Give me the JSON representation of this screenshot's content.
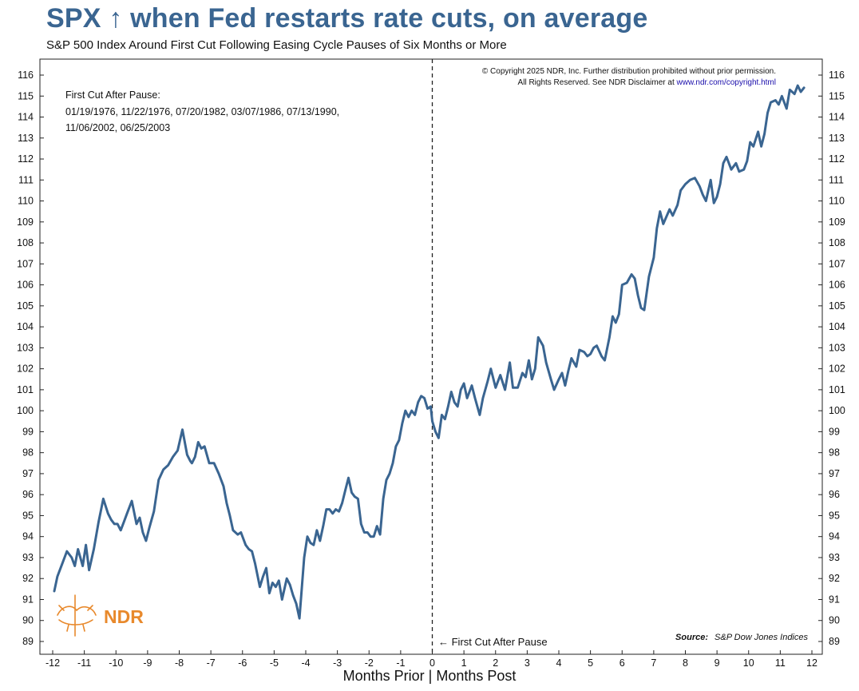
{
  "title": "SPX ↑ when Fed restarts rate cuts, on average",
  "subtitle": "S&P 500 Index Around First Cut Following Easing Cycle Pauses of Six Months or More",
  "copyright_line1": "© Copyright 2025 NDR, Inc. Further distribution prohibited without prior permission.",
  "copyright_line2_prefix": "All Rights Reserved. See NDR Disclaimer at ",
  "copyright_link": "www.ndr.com/copyright.html",
  "dates_heading": "First Cut After Pause:",
  "dates_line1": "01/19/1976, 11/22/1976, 07/20/1982, 03/07/1986, 07/13/1990,",
  "dates_line2": "11/06/2002, 06/25/2003",
  "marker_label": "←  First Cut After Pause",
  "source_label": "Source:",
  "source_value": "S&P Dow Jones Indices",
  "logo_text": "NDR",
  "colors": {
    "line": "#3a6591",
    "title": "#3a6591",
    "logo": "#e8892c",
    "link": "#1a0dab"
  },
  "chart_data": {
    "type": "line",
    "title": "SPX ↑ when Fed restarts rate cuts, on average",
    "subtitle": "S&P 500 Index Around First Cut Following Easing Cycle Pauses of Six Months or More",
    "xlabel": "Months Prior | Months Post",
    "ylabel": "",
    "xlim": [
      -12,
      12
    ],
    "ylim": [
      89,
      116
    ],
    "x_ticks": [
      -12,
      -11,
      -10,
      -9,
      -8,
      -7,
      -6,
      -5,
      -4,
      -3,
      -2,
      -1,
      0,
      1,
      2,
      3,
      4,
      5,
      6,
      7,
      8,
      9,
      10,
      11,
      12
    ],
    "y_ticks": [
      89,
      90,
      91,
      92,
      93,
      94,
      95,
      96,
      97,
      98,
      99,
      100,
      101,
      102,
      103,
      104,
      105,
      106,
      107,
      108,
      109,
      110,
      111,
      112,
      113,
      114,
      115,
      116
    ],
    "grid": false,
    "vertical_marker_x": 0,
    "series": [
      {
        "x": [
          -11.95,
          -11.85,
          -11.7,
          -11.55,
          -11.4,
          -11.3,
          -11.2,
          -11.05,
          -10.95,
          -10.85,
          -10.7,
          -10.55,
          -10.4,
          -10.25,
          -10.15,
          -10.05,
          -9.95,
          -9.85,
          -9.75,
          -9.65,
          -9.5,
          -9.35,
          -9.25,
          -9.15,
          -9.05,
          -8.95,
          -8.8,
          -8.65,
          -8.5,
          -8.35,
          -8.2,
          -8.05,
          -7.9,
          -7.75,
          -7.65,
          -7.6,
          -7.5,
          -7.4,
          -7.3,
          -7.2,
          -7.05,
          -6.9,
          -6.75,
          -6.6,
          -6.5,
          -6.4,
          -6.3,
          -6.15,
          -6.05,
          -5.9,
          -5.8,
          -5.7,
          -5.6,
          -5.45,
          -5.35,
          -5.25,
          -5.15,
          -5.05,
          -4.95,
          -4.85,
          -4.75,
          -4.6,
          -4.5,
          -4.4,
          -4.3,
          -4.2,
          -4.05,
          -3.95,
          -3.85,
          -3.75,
          -3.65,
          -3.55,
          -3.45,
          -3.35,
          -3.25,
          -3.15,
          -3.05,
          -2.95,
          -2.85,
          -2.75,
          -2.65,
          -2.55,
          -2.45,
          -2.35,
          -2.25,
          -2.15,
          -2.05,
          -1.95,
          -1.85,
          -1.75,
          -1.65,
          -1.55,
          -1.45,
          -1.35,
          -1.25,
          -1.15,
          -1.05,
          -0.95,
          -0.85,
          -0.75,
          -0.65,
          -0.55,
          -0.45,
          -0.35,
          -0.25,
          -0.15,
          -0.05,
          0.0,
          0.1,
          0.2,
          0.3,
          0.4,
          0.5,
          0.6,
          0.7,
          0.8,
          0.9,
          1.0,
          1.1,
          1.25,
          1.35,
          1.5,
          1.6,
          1.75,
          1.85,
          2.0,
          2.15,
          2.3,
          2.45,
          2.55,
          2.7,
          2.85,
          2.95,
          3.05,
          3.15,
          3.25,
          3.35,
          3.5,
          3.6,
          3.75,
          3.85,
          4.0,
          4.1,
          4.2,
          4.3,
          4.4,
          4.55,
          4.65,
          4.8,
          4.9,
          5.0,
          5.1,
          5.2,
          5.35,
          5.45,
          5.6,
          5.7,
          5.8,
          5.9,
          6.0,
          6.15,
          6.3,
          6.4,
          6.5,
          6.6,
          6.7,
          6.85,
          7.0,
          7.1,
          7.2,
          7.3,
          7.5,
          7.6,
          7.75,
          7.85,
          8.0,
          8.15,
          8.3,
          8.45,
          8.55,
          8.65,
          8.8,
          8.9,
          9.0,
          9.1,
          9.2,
          9.3,
          9.45,
          9.6,
          9.7,
          9.85,
          9.95,
          10.05,
          10.15,
          10.3,
          10.4,
          10.5,
          10.6,
          10.7,
          10.85,
          10.95,
          11.05,
          11.2,
          11.3,
          11.45,
          11.55,
          11.65,
          11.75
        ],
        "values": [
          91.4,
          92.1,
          92.7,
          93.3,
          93.0,
          92.6,
          93.4,
          92.6,
          93.6,
          92.4,
          93.4,
          94.7,
          95.8,
          95.1,
          94.8,
          94.6,
          94.6,
          94.3,
          94.7,
          95.1,
          95.7,
          94.6,
          94.9,
          94.2,
          93.8,
          94.4,
          95.2,
          96.7,
          97.2,
          97.4,
          97.8,
          98.1,
          99.1,
          97.9,
          97.6,
          97.5,
          97.8,
          98.5,
          98.2,
          98.3,
          97.5,
          97.5,
          97.0,
          96.4,
          95.6,
          95.0,
          94.3,
          94.1,
          94.2,
          93.6,
          93.4,
          93.3,
          92.7,
          91.6,
          92.1,
          92.5,
          91.3,
          91.8,
          91.6,
          91.9,
          91.0,
          92.0,
          91.7,
          91.2,
          90.8,
          90.1,
          93.0,
          94.0,
          93.7,
          93.6,
          94.3,
          93.8,
          94.5,
          95.3,
          95.3,
          95.1,
          95.3,
          95.2,
          95.6,
          96.2,
          96.8,
          96.1,
          95.9,
          95.8,
          94.6,
          94.2,
          94.2,
          94.0,
          94.0,
          94.5,
          94.1,
          95.8,
          96.7,
          97.0,
          97.5,
          98.3,
          98.6,
          99.4,
          100.0,
          99.7,
          100.0,
          99.8,
          100.4,
          100.7,
          100.6,
          100.1,
          100.2,
          99.5,
          99.0,
          98.7,
          99.8,
          99.6,
          100.2,
          100.9,
          100.4,
          100.2,
          101.0,
          101.3,
          100.6,
          101.2,
          100.6,
          99.8,
          100.6,
          101.4,
          102.0,
          101.1,
          101.7,
          101.0,
          102.3,
          101.1,
          101.1,
          101.8,
          101.6,
          102.4,
          101.5,
          102.0,
          103.5,
          103.1,
          102.3,
          101.5,
          101.0,
          101.5,
          101.8,
          101.2,
          101.9,
          102.5,
          102.1,
          102.9,
          102.8,
          102.6,
          102.7,
          103.0,
          103.1,
          102.6,
          102.4,
          103.5,
          104.5,
          104.2,
          104.6,
          106.0,
          106.1,
          106.5,
          106.3,
          105.5,
          104.9,
          104.8,
          106.4,
          107.3,
          108.7,
          109.5,
          108.9,
          109.6,
          109.3,
          109.8,
          110.5,
          110.8,
          111.0,
          111.1,
          110.7,
          110.3,
          110.0,
          111.0,
          109.9,
          110.2,
          110.8,
          111.8,
          112.1,
          111.5,
          111.8,
          111.4,
          111.5,
          111.9,
          112.8,
          112.6,
          113.3,
          112.6,
          113.2,
          114.2,
          114.7,
          114.8,
          114.6,
          115.0,
          114.4,
          115.3,
          115.1,
          115.5,
          115.2,
          115.4
        ],
        "color": "#3a6591"
      }
    ]
  }
}
